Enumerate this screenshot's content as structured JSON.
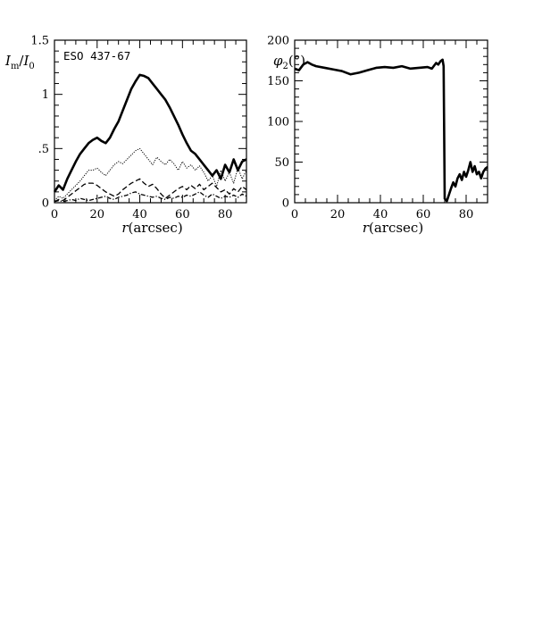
{
  "chart_data": [
    {
      "type": "line",
      "annotation": "ESO 437-67",
      "xlabel": "r(arcsec)",
      "ylabel": "I_m/I_0",
      "ylabel_main": "I",
      "ylabel_sub1": "m",
      "ylabel_slash": "/I",
      "ylabel_sub2": "0",
      "xlim": [
        0,
        90
      ],
      "ylim": [
        0,
        1.5
      ],
      "x_ticks": [
        0,
        20,
        40,
        60,
        80
      ],
      "x_tick_labels": [
        "0",
        "20",
        "40",
        "60",
        "80"
      ],
      "y_ticks": [
        0,
        0.5,
        1,
        1.5
      ],
      "y_tick_labels": [
        "0",
        ".5",
        "1",
        "1.5"
      ],
      "grid": false,
      "series": [
        {
          "style": "thick-solid",
          "x": [
            0,
            2,
            4,
            6,
            8,
            10,
            12,
            14,
            16,
            18,
            20,
            22,
            24,
            26,
            28,
            30,
            32,
            34,
            36,
            38,
            40,
            42,
            44,
            46,
            48,
            50,
            52,
            54,
            56,
            58,
            60,
            62,
            64,
            66,
            68,
            70,
            72,
            74,
            76,
            78,
            80,
            82,
            84,
            86,
            88,
            90
          ],
          "y": [
            0.1,
            0.16,
            0.12,
            0.22,
            0.3,
            0.38,
            0.45,
            0.5,
            0.55,
            0.58,
            0.6,
            0.57,
            0.55,
            0.6,
            0.68,
            0.75,
            0.85,
            0.95,
            1.05,
            1.12,
            1.18,
            1.17,
            1.15,
            1.1,
            1.05,
            1.0,
            0.95,
            0.88,
            0.8,
            0.72,
            0.63,
            0.55,
            0.48,
            0.45,
            0.4,
            0.35,
            0.3,
            0.25,
            0.3,
            0.22,
            0.35,
            0.28,
            0.4,
            0.3,
            0.38,
            0.4
          ]
        },
        {
          "style": "thin-dotted",
          "x": [
            0,
            2,
            4,
            6,
            8,
            10,
            12,
            14,
            16,
            18,
            20,
            22,
            24,
            26,
            28,
            30,
            32,
            34,
            36,
            38,
            40,
            42,
            44,
            46,
            48,
            50,
            52,
            54,
            56,
            58,
            60,
            62,
            64,
            66,
            68,
            70,
            72,
            74,
            76,
            78,
            80,
            82,
            84,
            86,
            88,
            90
          ],
          "y": [
            0.02,
            0.06,
            0.04,
            0.08,
            0.12,
            0.16,
            0.2,
            0.25,
            0.3,
            0.3,
            0.32,
            0.28,
            0.25,
            0.3,
            0.35,
            0.38,
            0.36,
            0.4,
            0.44,
            0.48,
            0.5,
            0.45,
            0.4,
            0.35,
            0.42,
            0.38,
            0.35,
            0.4,
            0.36,
            0.3,
            0.38,
            0.32,
            0.35,
            0.3,
            0.34,
            0.28,
            0.2,
            0.25,
            0.15,
            0.3,
            0.2,
            0.28,
            0.18,
            0.32,
            0.22,
            0.3
          ]
        },
        {
          "style": "dashed",
          "x": [
            0,
            2,
            4,
            6,
            8,
            10,
            12,
            14,
            16,
            18,
            20,
            22,
            24,
            26,
            28,
            30,
            32,
            34,
            36,
            38,
            40,
            42,
            44,
            46,
            48,
            50,
            52,
            54,
            56,
            58,
            60,
            62,
            64,
            66,
            68,
            70,
            72,
            74,
            76,
            78,
            80,
            82,
            84,
            86,
            88,
            90
          ],
          "y": [
            0.01,
            0.03,
            0.02,
            0.05,
            0.08,
            0.11,
            0.14,
            0.17,
            0.18,
            0.18,
            0.16,
            0.13,
            0.1,
            0.08,
            0.06,
            0.08,
            0.12,
            0.15,
            0.18,
            0.2,
            0.22,
            0.18,
            0.15,
            0.17,
            0.13,
            0.08,
            0.04,
            0.07,
            0.1,
            0.13,
            0.15,
            0.12,
            0.16,
            0.13,
            0.17,
            0.12,
            0.15,
            0.18,
            0.14,
            0.1,
            0.12,
            0.08,
            0.13,
            0.1,
            0.15,
            0.12
          ]
        },
        {
          "style": "dash-dot",
          "x": [
            0,
            2,
            4,
            6,
            8,
            10,
            12,
            14,
            16,
            18,
            20,
            22,
            24,
            26,
            28,
            30,
            32,
            34,
            36,
            38,
            40,
            42,
            44,
            46,
            48,
            50,
            52,
            54,
            56,
            58,
            60,
            62,
            64,
            66,
            68,
            70,
            72,
            74,
            76,
            78,
            80,
            82,
            84,
            86,
            88,
            90
          ],
          "y": [
            0.01,
            0.02,
            0.01,
            0.02,
            0.03,
            0.02,
            0.04,
            0.03,
            0.02,
            0.03,
            0.04,
            0.05,
            0.06,
            0.04,
            0.03,
            0.05,
            0.06,
            0.07,
            0.09,
            0.1,
            0.08,
            0.07,
            0.06,
            0.05,
            0.06,
            0.04,
            0.03,
            0.05,
            0.04,
            0.06,
            0.05,
            0.07,
            0.06,
            0.08,
            0.1,
            0.07,
            0.05,
            0.08,
            0.06,
            0.04,
            0.06,
            0.05,
            0.07,
            0.05,
            0.08,
            0.06
          ]
        }
      ]
    },
    {
      "type": "line",
      "annotation": "",
      "xlabel": "r(arcsec)",
      "ylabel": "φ2(°)",
      "ylabel_main": "φ",
      "ylabel_sub1": "2",
      "ylabel_slash": "(°)",
      "ylabel_sub2": "",
      "xlim": [
        0,
        90
      ],
      "ylim": [
        0,
        200
      ],
      "x_ticks": [
        0,
        20,
        40,
        60,
        80
      ],
      "x_tick_labels": [
        "0",
        "20",
        "40",
        "60",
        "80"
      ],
      "y_ticks": [
        0,
        50,
        100,
        150,
        200
      ],
      "y_tick_labels": [
        "0",
        "50",
        "100",
        "150",
        "200"
      ],
      "grid": false,
      "series": [
        {
          "style": "thick-solid",
          "x": [
            0,
            2,
            4,
            6,
            8,
            10,
            14,
            18,
            22,
            26,
            30,
            34,
            38,
            42,
            46,
            50,
            54,
            58,
            62,
            64,
            66,
            67,
            68,
            69,
            69.5,
            70,
            71,
            72,
            73,
            74,
            75,
            76,
            77,
            78,
            79,
            80,
            81,
            82,
            83,
            84,
            85,
            86,
            87,
            88,
            89,
            90
          ],
          "y": [
            165,
            163,
            170,
            173,
            170,
            168,
            166,
            164,
            162,
            158,
            160,
            163,
            166,
            167,
            166,
            168,
            165,
            166,
            167,
            165,
            172,
            170,
            174,
            176,
            168,
            5,
            2,
            10,
            18,
            25,
            20,
            30,
            35,
            28,
            38,
            32,
            40,
            50,
            38,
            45,
            35,
            38,
            30,
            38,
            42,
            44
          ]
        }
      ]
    }
  ]
}
